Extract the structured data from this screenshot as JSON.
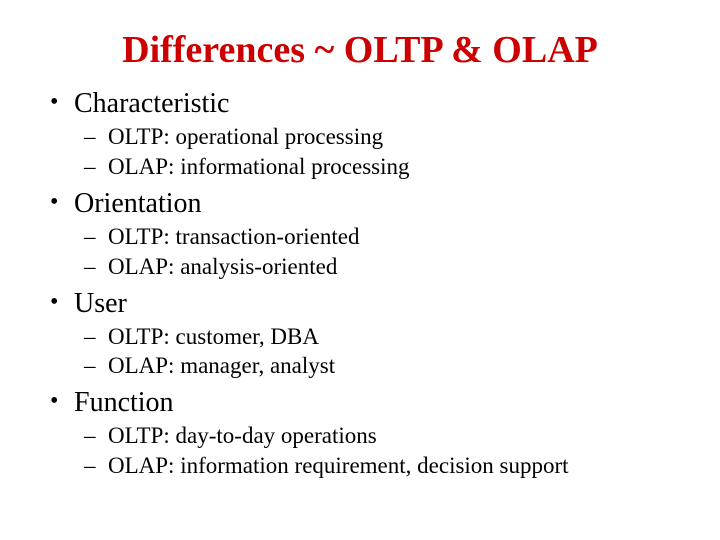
{
  "title": "Differences ~ OLTP & OLAP",
  "title_color": "#cc0000",
  "title_fontsize": 38,
  "bullet_fontsize": 28,
  "sub_fontsize": 23,
  "text_color": "#000000",
  "background_color": "#ffffff",
  "sections": [
    {
      "heading": "Characteristic",
      "items": [
        "OLTP: operational processing",
        "OLAP: informational processing"
      ]
    },
    {
      "heading": "Orientation",
      "items": [
        "OLTP: transaction-oriented",
        "OLAP: analysis-oriented"
      ]
    },
    {
      "heading": "User",
      "items": [
        "OLTP: customer, DBA",
        "OLAP: manager, analyst"
      ]
    },
    {
      "heading": "Function",
      "items": [
        "OLTP: day-to-day operations",
        "OLAP: information requirement, decision support"
      ]
    }
  ]
}
